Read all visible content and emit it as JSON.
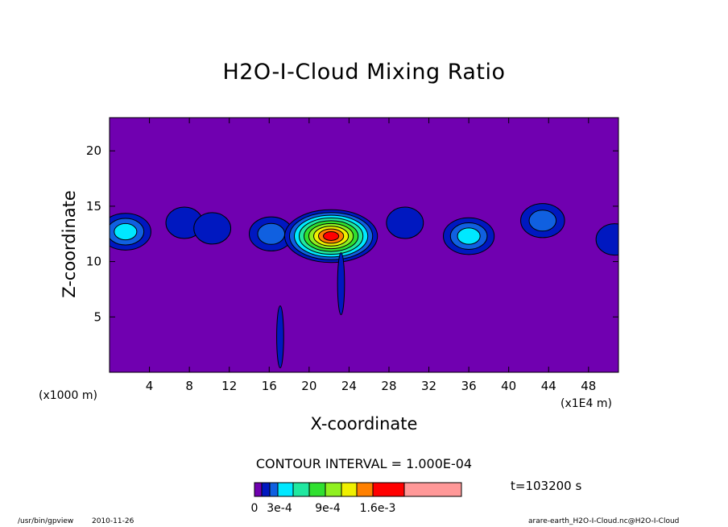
{
  "chart_data": {
    "type": "heatmap",
    "title": "H2O-I-Cloud Mixing Ratio",
    "xlabel": "X-coordinate",
    "ylabel": "Z-coordinate",
    "x_unit_left": "(x1000 m)",
    "x_unit_right": "(x1E4 m)",
    "xlim": [
      0,
      51
    ],
    "ylim": [
      0,
      23
    ],
    "x_ticks": [
      4,
      8,
      12,
      16,
      20,
      24,
      28,
      32,
      36,
      40,
      44,
      48
    ],
    "y_ticks": [
      5,
      10,
      15,
      20
    ],
    "contour_interval": "CONTOUR INTERVAL = 1.000E-04",
    "time": "t=103200 s",
    "colorbar": {
      "colors": [
        "#7000b0",
        "#0018c0",
        "#1060e0",
        "#00e8ff",
        "#20e8a0",
        "#30e030",
        "#90f020",
        "#f0f000",
        "#ff8000",
        "#ff0000",
        "#ff9898"
      ],
      "labels": [
        "0",
        "3e-4",
        "9e-4",
        "1.6e-3"
      ]
    },
    "cloud_features": [
      {
        "x": 1.6,
        "z": 12.7,
        "max_level": 3
      },
      {
        "x": 7.5,
        "z": 13.5,
        "max_level": 1
      },
      {
        "x": 10.3,
        "z": 13.0,
        "max_level": 1
      },
      {
        "x": 16.2,
        "z": 12.5,
        "max_level": 2
      },
      {
        "x": 22.2,
        "z": 12.3,
        "max_level": 9
      },
      {
        "x": 23.2,
        "z": 8.0,
        "max_level": 1,
        "shaft": true
      },
      {
        "x": 17.1,
        "z": 3.2,
        "max_level": 1,
        "shaft": true
      },
      {
        "x": 29.6,
        "z": 13.5,
        "max_level": 1
      },
      {
        "x": 36.0,
        "z": 12.3,
        "max_level": 3
      },
      {
        "x": 43.4,
        "z": 13.7,
        "max_level": 2
      },
      {
        "x": 50.6,
        "z": 12.0,
        "max_level": 1
      }
    ]
  },
  "colors": {
    "background": "#7000b0"
  },
  "footer": {
    "left_path": "/usr/bin/gpview",
    "left_date": "2010-11-26",
    "right": "arare-earth_H2O-I-Cloud.nc@H2O-I-Cloud"
  }
}
